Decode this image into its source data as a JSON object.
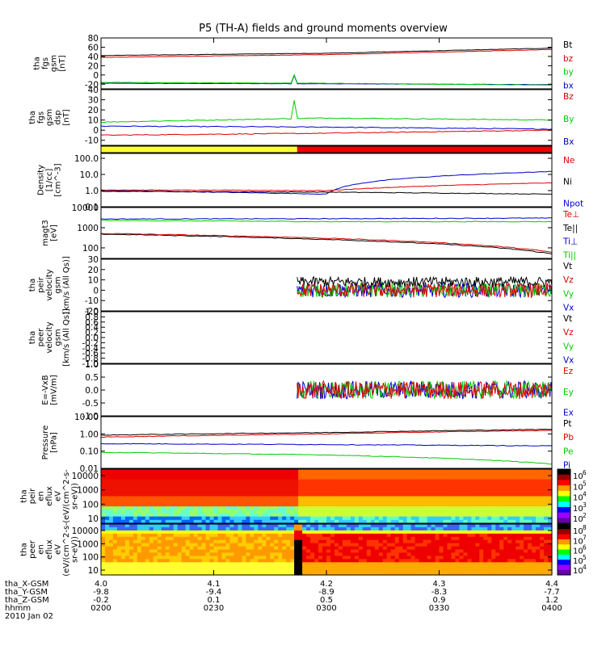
{
  "title": "P5 (TH-A) fields and ground moments overview",
  "x_axis": {
    "tick_values": [
      4.0,
      4.1,
      4.2,
      4.3,
      4.4
    ],
    "rows": [
      {
        "label": "tha_X-GSM",
        "values": [
          "4.0",
          "4.1",
          "4.2",
          "4.3",
          "4.4"
        ]
      },
      {
        "label": "tha_Y-GSM",
        "values": [
          "-9.8",
          "-9.4",
          "-8.9",
          "-8.3",
          "-7.7"
        ]
      },
      {
        "label": "tha_Z-GSM",
        "values": [
          "-0.2",
          "0.1",
          "0.5",
          "0.9",
          "1.2"
        ]
      },
      {
        "label": "hhmm",
        "values": [
          "0200",
          "0230",
          "0300",
          "0330",
          "0400"
        ]
      }
    ],
    "date": "2010 Jan 02"
  },
  "chart_data": [
    {
      "type": "line",
      "ylabel": [
        "tha",
        "fgs",
        "gsm",
        "[nT]"
      ],
      "ylim": [
        -30,
        80
      ],
      "yticks": [
        "80",
        "60",
        "40",
        "20",
        "0",
        "-20"
      ],
      "series": [
        {
          "name": "Bt",
          "color": "#000000",
          "x": [
            4.0,
            4.2,
            4.4
          ],
          "values": [
            42,
            47,
            58
          ]
        },
        {
          "name": "bz",
          "color": "#dd0000",
          "x": [
            4.0,
            4.2,
            4.4
          ],
          "values": [
            38,
            44,
            55
          ]
        },
        {
          "name": "by",
          "color": "#00cc00",
          "x": [
            4.0,
            4.2,
            4.4
          ],
          "values": [
            -16,
            -18,
            -22
          ]
        },
        {
          "name": "bx",
          "color": "#0000cc",
          "x": [
            4.0,
            4.2,
            4.4
          ],
          "values": [
            -18,
            -19,
            -21
          ]
        }
      ]
    },
    {
      "type": "line",
      "ylabel": [
        "tha",
        "fgs",
        "gsm",
        "dsp",
        "[nT]"
      ],
      "ylim": [
        -15,
        40
      ],
      "yticks": [
        "40",
        "30",
        "20",
        "10",
        "0",
        "-10"
      ],
      "series": [
        {
          "name": "Bz",
          "color": "#dd0000",
          "x": [
            4.0,
            4.2,
            4.4
          ],
          "values": [
            -5,
            -3,
            0
          ]
        },
        {
          "name": "By",
          "color": "#00cc00",
          "x": [
            4.0,
            4.2,
            4.4
          ],
          "values": [
            8,
            12,
            10
          ]
        },
        {
          "name": "Bx",
          "color": "#0000cc",
          "x": [
            4.0,
            4.2,
            4.4
          ],
          "values": [
            4,
            3,
            1
          ]
        }
      ]
    },
    {
      "type": "bar",
      "ylabel": [],
      "series": [
        {
          "name": "yellow",
          "color": "#ffff33",
          "x": [
            4.0,
            4.174
          ]
        },
        {
          "name": "red",
          "color": "#ee0000",
          "x": [
            4.174,
            4.4
          ]
        }
      ]
    },
    {
      "type": "line",
      "ylabel": [
        "Density",
        "[1/cc]",
        "[cm^-3]"
      ],
      "yscale": "log",
      "ylim": [
        0.1,
        200
      ],
      "yticks": [
        "100.0",
        "10.0",
        "1.0",
        "0.1"
      ],
      "series": [
        {
          "name": "Ne",
          "color": "#dd0000",
          "x": [
            4.0,
            4.2,
            4.4
          ],
          "values": [
            1.1,
            1.0,
            3.0
          ]
        },
        {
          "name": "Ni",
          "color": "#000000",
          "x": [
            4.0,
            4.2,
            4.4
          ],
          "values": [
            0.9,
            0.8,
            0.6
          ]
        },
        {
          "name": "Npot",
          "color": "#0000cc",
          "x": [
            4.0,
            4.2,
            4.4
          ],
          "values": [
            1.0,
            0.6,
            15
          ]
        }
      ]
    },
    {
      "type": "line",
      "ylabel": [
        "magt3",
        "[eV]"
      ],
      "yscale": "log",
      "ylim": [
        30,
        10000
      ],
      "yticks": [
        "10000",
        "1000",
        "100"
      ],
      "series": [
        {
          "name": "Te⊥",
          "color": "#dd0000",
          "x": [
            4.0,
            4.2,
            4.4
          ],
          "values": [
            520,
            300,
            60
          ]
        },
        {
          "name": "Te||",
          "color": "#000000",
          "x": [
            4.0,
            4.2,
            4.4
          ],
          "values": [
            480,
            260,
            50
          ]
        },
        {
          "name": "Ti⊥",
          "color": "#0000cc",
          "x": [
            4.0,
            4.2,
            4.4
          ],
          "values": [
            2700,
            2800,
            3000
          ]
        },
        {
          "name": "Ti||",
          "color": "#00cc00",
          "x": [
            4.0,
            4.2,
            4.4
          ],
          "values": [
            2300,
            2000,
            2000
          ]
        }
      ]
    },
    {
      "type": "line",
      "ylabel": [
        "tha",
        "peir",
        "velocity",
        "gsm",
        "[km/s (All Qs)]"
      ],
      "ylim": [
        -20,
        30
      ],
      "yticks": [
        "30",
        "20",
        "10",
        "0",
        "-10",
        "-20"
      ],
      "series": [
        {
          "name": "Vt",
          "color": "#000000",
          "x": [
            4.174,
            4.4
          ],
          "values": [
            8,
            8
          ]
        },
        {
          "name": "Vz",
          "color": "#dd0000",
          "x": [
            4.174,
            4.4
          ],
          "values": [
            0,
            0
          ]
        },
        {
          "name": "Vy",
          "color": "#00cc00",
          "x": [
            4.174,
            4.4
          ],
          "values": [
            0,
            0
          ]
        },
        {
          "name": "Vx",
          "color": "#0000cc",
          "x": [
            4.174,
            4.4
          ],
          "values": [
            0,
            0
          ]
        }
      ]
    },
    {
      "type": "line",
      "ylabel": [
        "tha",
        "peer",
        "velocity",
        "gsm",
        "[km/s (All Qs)]"
      ],
      "ylim": [
        -1.0,
        1.0
      ],
      "yticks": [
        "1.0",
        "0.8",
        "0.6",
        "0.4",
        "0.2",
        "0.0",
        "-0.2",
        "-0.4",
        "-0.6",
        "-0.8",
        "-1.0"
      ],
      "series": [
        {
          "name": "Vt",
          "color": "#000000",
          "values": []
        },
        {
          "name": "Vz",
          "color": "#dd0000",
          "values": []
        },
        {
          "name": "Vy",
          "color": "#00cc00",
          "values": []
        },
        {
          "name": "Vx",
          "color": "#0000cc",
          "values": []
        }
      ]
    },
    {
      "type": "line",
      "ylabel": [
        "E=-VxB",
        "[mV/m]"
      ],
      "ylim": [
        -1.0,
        1.0
      ],
      "yticks": [
        "1.0",
        "0.5",
        "0.0",
        "-0.5",
        "-1.0"
      ],
      "series": [
        {
          "name": "Ez",
          "color": "#dd0000",
          "x": [
            4.174,
            4.4
          ],
          "values": [
            0,
            0
          ]
        },
        {
          "name": "Ey",
          "color": "#00cc00",
          "x": [
            4.174,
            4.4
          ],
          "values": [
            0,
            0
          ]
        },
        {
          "name": "Ex",
          "color": "#0000cc",
          "x": [
            4.174,
            4.4
          ],
          "values": [
            0,
            0
          ]
        }
      ]
    },
    {
      "type": "line",
      "ylabel": [
        "Pressure",
        "[nPa]"
      ],
      "yscale": "log",
      "ylim": [
        0.01,
        10
      ],
      "yticks": [
        "10.00",
        "1.00",
        "0.10",
        "0.01"
      ],
      "series": [
        {
          "name": "Pt",
          "color": "#000000",
          "x": [
            4.0,
            4.2,
            4.4
          ],
          "values": [
            0.85,
            1.2,
            1.85
          ]
        },
        {
          "name": "Pb",
          "color": "#dd0000",
          "x": [
            4.0,
            4.2,
            4.4
          ],
          "values": [
            0.65,
            1.0,
            1.6
          ]
        },
        {
          "name": "Pe",
          "color": "#00cc00",
          "x": [
            4.0,
            4.2,
            4.4
          ],
          "values": [
            0.085,
            0.06,
            0.018
          ]
        },
        {
          "name": "Pi",
          "color": "#0000cc",
          "x": [
            4.0,
            4.2,
            4.4
          ],
          "values": [
            0.27,
            0.24,
            0.2
          ]
        }
      ]
    },
    {
      "type": "heatmap",
      "ylabel": [
        "tha",
        "peir",
        "en",
        "eflux",
        "eV",
        "(eV/(cm^2-s-",
        "sr-eV))"
      ],
      "yscale": "log",
      "yticks": [
        "10000",
        "1000",
        "100",
        "10"
      ],
      "colorbar_ticks": [
        "10^6",
        "10^5",
        "10^4",
        "10^3",
        "10^2"
      ]
    },
    {
      "type": "heatmap",
      "ylabel": [
        "tha",
        "peer",
        "en",
        "eflux",
        "eV",
        "(eV/(cm^2-s-",
        "sr-eV))"
      ],
      "yscale": "log",
      "yticks": [
        "10000",
        "1000",
        "100",
        "10"
      ],
      "colorbar_ticks": [
        "10^8",
        "10^7",
        "10^6",
        "10^5",
        "10^4"
      ]
    }
  ]
}
